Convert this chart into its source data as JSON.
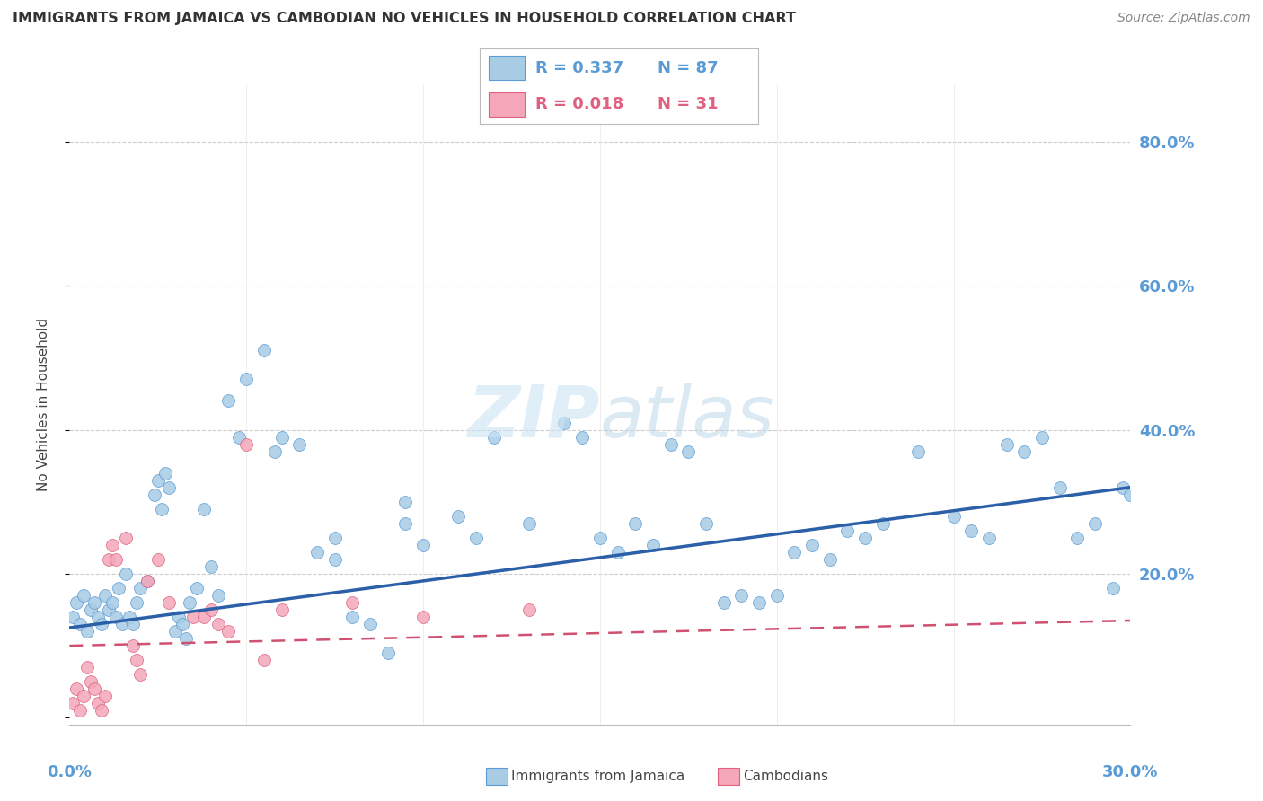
{
  "title": "IMMIGRANTS FROM JAMAICA VS CAMBODIAN NO VEHICLES IN HOUSEHOLD CORRELATION CHART",
  "source": "Source: ZipAtlas.com",
  "ylabel": "No Vehicles in Household",
  "xlim": [
    0.0,
    0.3
  ],
  "ylim": [
    -0.01,
    0.88
  ],
  "blue_color": "#a8cce4",
  "blue_edge_color": "#5b9bd5",
  "pink_color": "#f4a7b9",
  "pink_edge_color": "#e06080",
  "blue_line_color": "#2b5fa8",
  "pink_line_color": "#d05070",
  "axis_label_color": "#5b9bd5",
  "title_color": "#333333",
  "source_color": "#888888",
  "watermark_color": "#cce4f4",
  "legend_text_blue": "#5b9bd5",
  "legend_text_pink": "#e06080",
  "blue_x": [
    0.001,
    0.002,
    0.003,
    0.004,
    0.005,
    0.006,
    0.007,
    0.008,
    0.009,
    0.01,
    0.011,
    0.012,
    0.013,
    0.014,
    0.015,
    0.016,
    0.017,
    0.018,
    0.019,
    0.02,
    0.022,
    0.024,
    0.025,
    0.026,
    0.027,
    0.028,
    0.03,
    0.031,
    0.032,
    0.033,
    0.034,
    0.036,
    0.038,
    0.04,
    0.042,
    0.045,
    0.048,
    0.05,
    0.055,
    0.058,
    0.06,
    0.065,
    0.07,
    0.075,
    0.08,
    0.09,
    0.095,
    0.1,
    0.11,
    0.115,
    0.12,
    0.13,
    0.14,
    0.145,
    0.15,
    0.155,
    0.16,
    0.165,
    0.17,
    0.175,
    0.18,
    0.19,
    0.195,
    0.2,
    0.205,
    0.21,
    0.215,
    0.22,
    0.225,
    0.23,
    0.24,
    0.25,
    0.255,
    0.26,
    0.265,
    0.27,
    0.275,
    0.28,
    0.285,
    0.29,
    0.295,
    0.298,
    0.3,
    0.185,
    0.095,
    0.085,
    0.075
  ],
  "blue_y": [
    0.14,
    0.16,
    0.13,
    0.17,
    0.12,
    0.15,
    0.16,
    0.14,
    0.13,
    0.17,
    0.15,
    0.16,
    0.14,
    0.18,
    0.13,
    0.2,
    0.14,
    0.13,
    0.16,
    0.18,
    0.19,
    0.31,
    0.33,
    0.29,
    0.34,
    0.32,
    0.12,
    0.14,
    0.13,
    0.11,
    0.16,
    0.18,
    0.29,
    0.21,
    0.17,
    0.44,
    0.39,
    0.47,
    0.51,
    0.37,
    0.39,
    0.38,
    0.23,
    0.25,
    0.14,
    0.09,
    0.27,
    0.24,
    0.28,
    0.25,
    0.39,
    0.27,
    0.41,
    0.39,
    0.25,
    0.23,
    0.27,
    0.24,
    0.38,
    0.37,
    0.27,
    0.17,
    0.16,
    0.17,
    0.23,
    0.24,
    0.22,
    0.26,
    0.25,
    0.27,
    0.37,
    0.28,
    0.26,
    0.25,
    0.38,
    0.37,
    0.39,
    0.32,
    0.25,
    0.27,
    0.18,
    0.32,
    0.31,
    0.16,
    0.3,
    0.13,
    0.22
  ],
  "pink_x": [
    0.001,
    0.002,
    0.003,
    0.004,
    0.005,
    0.006,
    0.007,
    0.008,
    0.009,
    0.01,
    0.011,
    0.012,
    0.013,
    0.016,
    0.018,
    0.019,
    0.02,
    0.022,
    0.025,
    0.028,
    0.035,
    0.038,
    0.04,
    0.042,
    0.045,
    0.05,
    0.055,
    0.06,
    0.08,
    0.1,
    0.13
  ],
  "pink_y": [
    0.02,
    0.04,
    0.01,
    0.03,
    0.07,
    0.05,
    0.04,
    0.02,
    0.01,
    0.03,
    0.22,
    0.24,
    0.22,
    0.25,
    0.1,
    0.08,
    0.06,
    0.19,
    0.22,
    0.16,
    0.14,
    0.14,
    0.15,
    0.13,
    0.12,
    0.38,
    0.08,
    0.15,
    0.16,
    0.14,
    0.15
  ],
  "blue_trend_x": [
    0.0,
    0.3
  ],
  "blue_trend_y": [
    0.125,
    0.32
  ],
  "pink_trend_x": [
    0.0,
    0.3
  ],
  "pink_trend_y": [
    0.1,
    0.135
  ]
}
